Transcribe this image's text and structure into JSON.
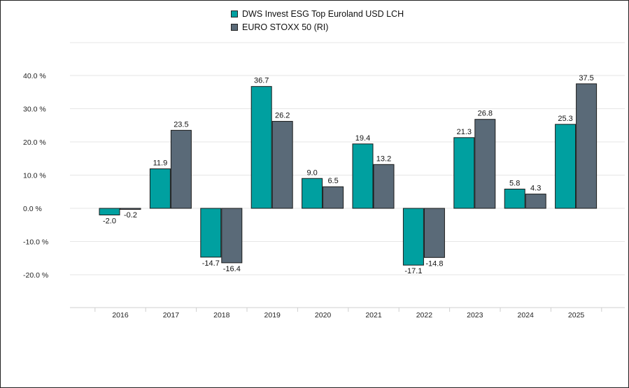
{
  "chart_data": {
    "type": "bar",
    "categories": [
      "2016",
      "2017",
      "2018",
      "2019",
      "2020",
      "2021",
      "2022",
      "2023",
      "2024",
      "2025"
    ],
    "series": [
      {
        "name": "DWS Invest ESG Top Euroland USD LCH",
        "color": "#00a0a0",
        "values": [
          -2.0,
          11.9,
          -14.7,
          36.7,
          9.0,
          19.4,
          -17.1,
          21.3,
          5.8,
          25.3
        ],
        "labels": [
          "-2.0",
          "11.9",
          "-14.7",
          "36.7",
          "9.0",
          "19.4",
          "-17.1",
          "21.3",
          "5.8",
          "25.3"
        ]
      },
      {
        "name": "EURO STOXX 50 (RI)",
        "color": "#5a6a78",
        "values": [
          -0.2,
          23.5,
          -16.4,
          26.2,
          6.5,
          13.2,
          -14.8,
          26.8,
          4.3,
          37.5
        ],
        "labels": [
          "-0.2",
          "23.5",
          "-16.4",
          "26.2",
          "6.5",
          "13.2",
          "-14.8",
          "26.8",
          "4.3",
          "37.5"
        ]
      }
    ],
    "y_ticks": [
      40,
      30,
      20,
      10,
      0,
      -10,
      -20
    ],
    "y_tick_labels": [
      "40.0 %",
      "30.0 %",
      "20.0 %",
      "10.0 %",
      "0.0 %",
      "-10.0 %",
      "-20.0 %"
    ],
    "ylim": [
      -30,
      40
    ],
    "grid": true,
    "legend": "top-center"
  }
}
